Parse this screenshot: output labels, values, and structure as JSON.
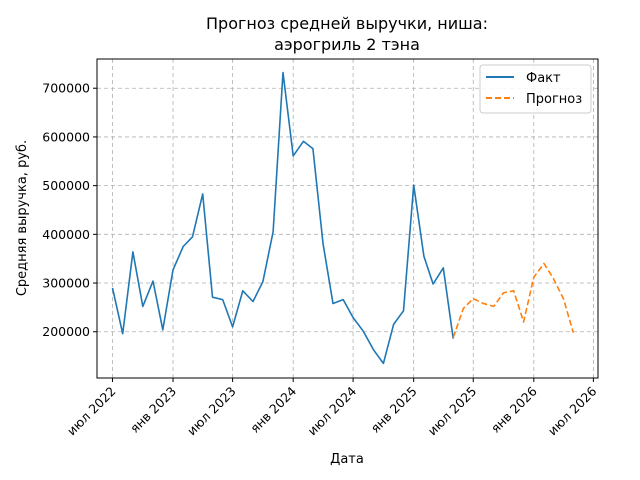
{
  "chart_data": {
    "type": "line",
    "title": [
      "Прогноз средней выручки, ниша:",
      "аэрогриль 2 тэна"
    ],
    "xlabel": "Дата",
    "ylabel": "Средняя выручка, руб.",
    "grid": true,
    "legend_position": "top-right",
    "xlim": [
      "2022-05-15",
      "2026-07-15"
    ],
    "ylim": [
      105000,
      760000
    ],
    "x_ticks": [
      {
        "date": "2022-07-01",
        "label": "июл 2022"
      },
      {
        "date": "2023-01-01",
        "label": "янв 2023"
      },
      {
        "date": "2023-07-01",
        "label": "июл 2023"
      },
      {
        "date": "2024-01-01",
        "label": "янв 2024"
      },
      {
        "date": "2024-07-01",
        "label": "июл 2024"
      },
      {
        "date": "2025-01-01",
        "label": "янв 2025"
      },
      {
        "date": "2025-07-01",
        "label": "июл 2025"
      },
      {
        "date": "2026-01-01",
        "label": "янв 2026"
      },
      {
        "date": "2026-07-01",
        "label": "июл 2026"
      }
    ],
    "y_ticks": [
      {
        "value": 200000,
        "label": "200000"
      },
      {
        "value": 300000,
        "label": "300000"
      },
      {
        "value": 400000,
        "label": "400000"
      },
      {
        "value": 500000,
        "label": "500000"
      },
      {
        "value": 600000,
        "label": "600000"
      },
      {
        "value": 700000,
        "label": "700000"
      }
    ],
    "series": [
      {
        "name": "Факт",
        "color": "#1f77b4",
        "style": "solid",
        "points": [
          {
            "x": "2022-07-01",
            "y": 290000
          },
          {
            "x": "2022-08-01",
            "y": 196000
          },
          {
            "x": "2022-09-01",
            "y": 364000
          },
          {
            "x": "2022-10-01",
            "y": 252000
          },
          {
            "x": "2022-11-01",
            "y": 304000
          },
          {
            "x": "2022-12-01",
            "y": 204000
          },
          {
            "x": "2023-01-01",
            "y": 327000
          },
          {
            "x": "2023-02-01",
            "y": 375000
          },
          {
            "x": "2023-03-01",
            "y": 395000
          },
          {
            "x": "2023-04-01",
            "y": 483000
          },
          {
            "x": "2023-05-01",
            "y": 271000
          },
          {
            "x": "2023-06-01",
            "y": 266000
          },
          {
            "x": "2023-07-01",
            "y": 210000
          },
          {
            "x": "2023-08-01",
            "y": 284000
          },
          {
            "x": "2023-09-01",
            "y": 262000
          },
          {
            "x": "2023-10-01",
            "y": 303000
          },
          {
            "x": "2023-11-01",
            "y": 405000
          },
          {
            "x": "2023-12-01",
            "y": 732000
          },
          {
            "x": "2024-01-01",
            "y": 561000
          },
          {
            "x": "2024-02-01",
            "y": 591000
          },
          {
            "x": "2024-03-01",
            "y": 576000
          },
          {
            "x": "2024-04-01",
            "y": 380000
          },
          {
            "x": "2024-05-01",
            "y": 258000
          },
          {
            "x": "2024-06-01",
            "y": 266000
          },
          {
            "x": "2024-07-01",
            "y": 229000
          },
          {
            "x": "2024-08-01",
            "y": 201000
          },
          {
            "x": "2024-09-01",
            "y": 163000
          },
          {
            "x": "2024-10-01",
            "y": 135000
          },
          {
            "x": "2024-11-01",
            "y": 215000
          },
          {
            "x": "2024-12-01",
            "y": 243000
          },
          {
            "x": "2025-01-01",
            "y": 501000
          },
          {
            "x": "2025-02-01",
            "y": 355000
          },
          {
            "x": "2025-03-01",
            "y": 298000
          },
          {
            "x": "2025-04-01",
            "y": 331000
          },
          {
            "x": "2025-05-01",
            "y": 186000
          }
        ]
      },
      {
        "name": "Прогноз",
        "color": "#ff7f0e",
        "style": "dashed",
        "points": [
          {
            "x": "2025-05-01",
            "y": 188000
          },
          {
            "x": "2025-06-01",
            "y": 248000
          },
          {
            "x": "2025-07-01",
            "y": 268000
          },
          {
            "x": "2025-08-01",
            "y": 258000
          },
          {
            "x": "2025-09-01",
            "y": 252000
          },
          {
            "x": "2025-10-01",
            "y": 280000
          },
          {
            "x": "2025-11-01",
            "y": 284000
          },
          {
            "x": "2025-12-01",
            "y": 220000
          },
          {
            "x": "2026-01-01",
            "y": 312000
          },
          {
            "x": "2026-02-01",
            "y": 340000
          },
          {
            "x": "2026-03-01",
            "y": 310000
          },
          {
            "x": "2026-04-01",
            "y": 268000
          },
          {
            "x": "2026-05-01",
            "y": 198000
          }
        ]
      }
    ]
  }
}
